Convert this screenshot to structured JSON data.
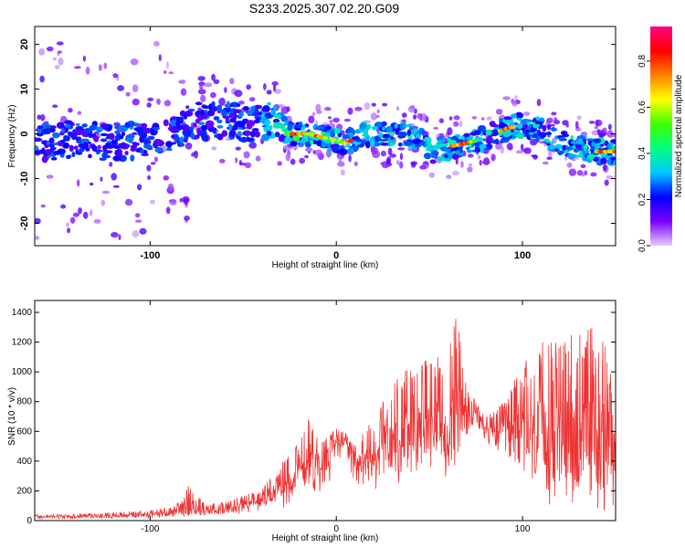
{
  "title": "S233.2025.307.02.20.G09",
  "chart_data": [
    {
      "type": "heatmap",
      "xlabel": "Height of straight line (km)",
      "ylabel": "Frequency (Hz)",
      "xlim": [
        -162,
        150
      ],
      "ylim": [
        -25,
        24
      ],
      "xticks": [
        -100,
        0,
        100
      ],
      "yticks": [
        -20,
        -10,
        0,
        10,
        20
      ],
      "ridge": {
        "x": [
          -160,
          -140,
          -120,
          -100,
          -90,
          -75,
          -60,
          -45,
          -35,
          -25,
          -15,
          -5,
          5,
          15,
          25,
          35,
          45,
          52,
          60,
          70,
          80,
          90,
          100,
          110,
          120,
          130,
          140,
          150
        ],
        "freq": [
          -2,
          -1,
          -2,
          -1,
          0,
          3,
          3,
          2,
          3,
          0,
          0,
          -1,
          -2,
          0,
          0,
          0,
          -1,
          -4,
          -3,
          -2,
          -1,
          1,
          2,
          1,
          -2,
          -3,
          -4,
          -4
        ]
      },
      "colorbar": {
        "label": "Normalized spectral amplitude",
        "range": [
          0,
          0.95
        ],
        "ticks": [
          0.0,
          0.2,
          0.4,
          0.6,
          0.8
        ],
        "tick_labels": [
          "0.0",
          "0.2",
          "0.4",
          "0.6",
          "0.8"
        ],
        "colors": [
          "#e6ccff",
          "#7a00ff",
          "#0000ff",
          "#00c8ff",
          "#00ff80",
          "#40ff00",
          "#ffff00",
          "#ff8000",
          "#ff0000",
          "#ff0080"
        ]
      }
    },
    {
      "type": "line",
      "xlabel": "Height of straight line (km)",
      "ylabel": "SNR (10 * v/v)",
      "xlim": [
        -162,
        150
      ],
      "ylim": [
        0,
        1480
      ],
      "xticks": [
        -100,
        0,
        100
      ],
      "yticks": [
        0,
        200,
        400,
        600,
        800,
        1000,
        1200,
        1400
      ],
      "line_color": "#ee3333",
      "envelope": {
        "x": [
          -162,
          -140,
          -120,
          -100,
          -90,
          -82,
          -80,
          -70,
          -60,
          -50,
          -40,
          -30,
          -20,
          -15,
          -10,
          -5,
          0,
          5,
          10,
          20,
          30,
          35,
          40,
          50,
          60,
          65,
          70,
          75,
          80,
          90,
          100,
          110,
          120,
          130,
          140,
          150
        ],
        "low": [
          10,
          10,
          12,
          15,
          20,
          25,
          30,
          25,
          30,
          50,
          60,
          80,
          120,
          150,
          160,
          200,
          380,
          480,
          200,
          200,
          220,
          250,
          250,
          280,
          250,
          300,
          550,
          650,
          500,
          400,
          150,
          80,
          50,
          50,
          50,
          50
        ],
        "high": [
          40,
          45,
          55,
          70,
          90,
          140,
          240,
          110,
          130,
          170,
          210,
          380,
          550,
          700,
          550,
          560,
          620,
          600,
          500,
          700,
          900,
          1000,
          1050,
          1100,
          1150,
          1400,
          900,
          800,
          700,
          800,
          1050,
          1200,
          1200,
          1300,
          1400,
          900
        ],
        "mean": [
          25,
          25,
          30,
          40,
          50,
          60,
          80,
          60,
          70,
          100,
          130,
          220,
          320,
          380,
          380,
          400,
          500,
          560,
          380,
          400,
          500,
          540,
          560,
          600,
          580,
          650,
          660,
          720,
          600,
          550,
          550,
          520,
          520,
          500,
          520,
          450
        ]
      }
    }
  ]
}
